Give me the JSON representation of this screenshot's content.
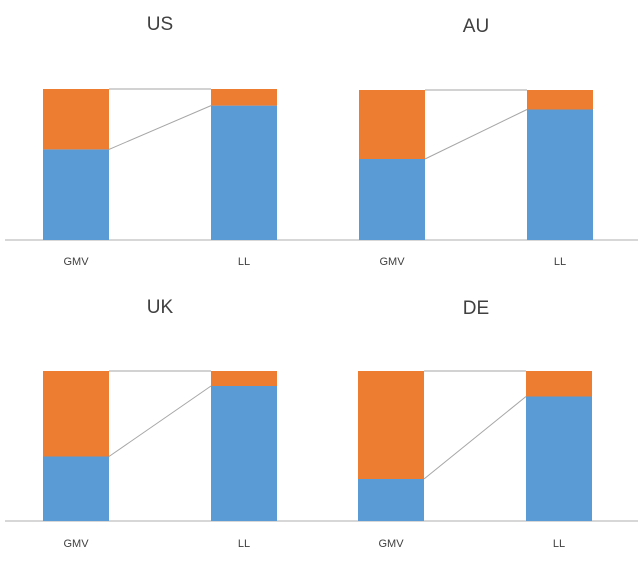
{
  "colors": {
    "bottom": "#5b9bd5",
    "top": "#ed7d31",
    "axis": "#bfbfbf",
    "connector": "#a6a6a6"
  },
  "chart_data": [
    {
      "type": "bar",
      "stacked": true,
      "normalized": true,
      "title": "US",
      "categories": [
        "GMV",
        "LL"
      ],
      "series": [
        {
          "values": [
            0.6,
            0.89
          ]
        },
        {
          "values": [
            0.4,
            0.11
          ]
        }
      ],
      "ylim": [
        0,
        1
      ],
      "grid": false,
      "legend": "none"
    },
    {
      "type": "bar",
      "stacked": true,
      "normalized": true,
      "title": "AU",
      "categories": [
        "GMV",
        "LL"
      ],
      "series": [
        {
          "values": [
            0.54,
            0.87
          ]
        },
        {
          "values": [
            0.46,
            0.13
          ]
        }
      ],
      "ylim": [
        0,
        1
      ],
      "grid": false,
      "legend": "none"
    },
    {
      "type": "bar",
      "stacked": true,
      "normalized": true,
      "title": "UK",
      "categories": [
        "GMV",
        "LL"
      ],
      "series": [
        {
          "values": [
            0.43,
            0.9
          ]
        },
        {
          "values": [
            0.57,
            0.1
          ]
        }
      ],
      "ylim": [
        0,
        1
      ],
      "grid": false,
      "legend": "none"
    },
    {
      "type": "bar",
      "stacked": true,
      "normalized": true,
      "title": "DE",
      "categories": [
        "GMV",
        "LL"
      ],
      "series": [
        {
          "values": [
            0.28,
            0.83
          ]
        },
        {
          "values": [
            0.72,
            0.17
          ]
        }
      ],
      "ylim": [
        0,
        1
      ],
      "grid": false,
      "legend": "none"
    }
  ]
}
